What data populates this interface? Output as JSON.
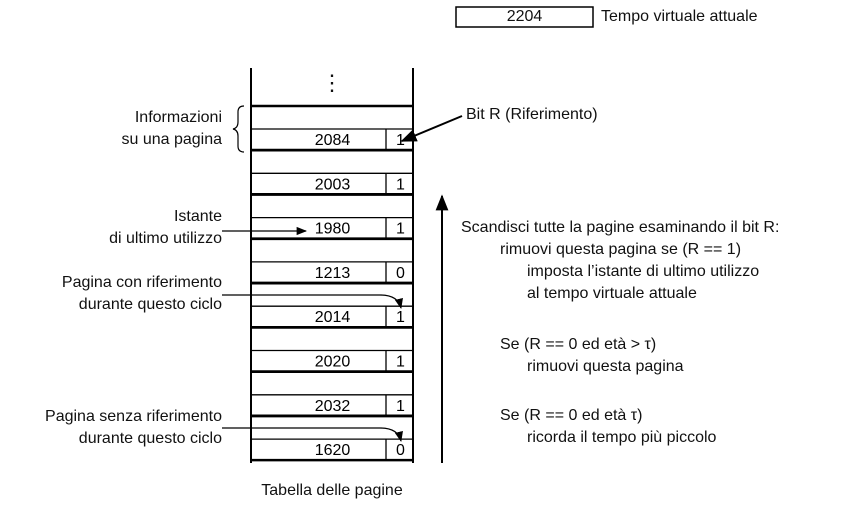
{
  "current_time": {
    "value": "2204",
    "label": "Tempo virtuale attuale"
  },
  "table": {
    "ellipsis": "⋮",
    "caption": "Tabella delle pagine",
    "rows": [
      {
        "time": "2084",
        "r": "1"
      },
      {
        "time": "2003",
        "r": "1"
      },
      {
        "time": "1980",
        "r": "1"
      },
      {
        "time": "1213",
        "r": "0"
      },
      {
        "time": "2014",
        "r": "1"
      },
      {
        "time": "2020",
        "r": "1"
      },
      {
        "time": "2032",
        "r": "1"
      },
      {
        "time": "1620",
        "r": "0"
      }
    ]
  },
  "left_labels": {
    "page_info": [
      "Informazioni",
      "su una pagina"
    ],
    "last_use": [
      "Istante",
      "di ultimo utilizzo"
    ],
    "referenced": [
      "Pagina con riferimento",
      "durante questo ciclo"
    ],
    "not_referenced": [
      "Pagina senza riferimento",
      "durante questo ciclo"
    ]
  },
  "bit_r_label": "Bit R (Riferimento)",
  "algorithm": {
    "l1": "Scandisci tutte la pagine esaminando il bit R:",
    "l2": "rimuovi questa pagina se (R == 1)",
    "l3": "imposta l’istante di ultimo utilizzo",
    "l4": "al tempo virtuale attuale",
    "l5": "Se (R == 0 ed età > τ)",
    "l6": "rimuovi questa pagina",
    "l7": "Se (R == 0 ed età  τ)",
    "l8": "ricorda il tempo più piccolo"
  }
}
